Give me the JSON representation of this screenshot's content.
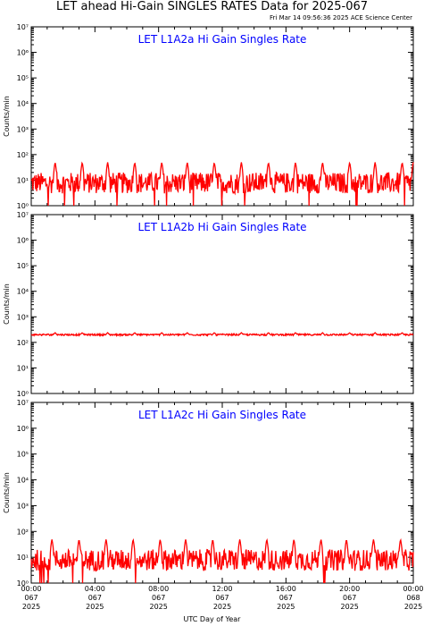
{
  "header": {
    "title": "LET ahead Hi-Gain SINGLES RATES Data for 2025-067",
    "timestamp": "Fri Mar 14 09:56:36 2025 ACE Science Center",
    "x_axis_title": "UTC Day of Year"
  },
  "colors": {
    "series": "#ff0000",
    "panel_title": "#0000ff",
    "axes": "#000000"
  },
  "chart_data": [
    {
      "type": "line",
      "title": "LET L1A2a Hi Gain Singles Rate",
      "ylabel": "Counts/min",
      "y_scale": "log",
      "ylim": [
        1,
        10000000
      ],
      "xlim": [
        0,
        24
      ],
      "x_unit": "hours UTC, day 067 of 2025",
      "y_tick_labels": [
        "10⁰",
        "10¹",
        "10²",
        "10³",
        "10⁴",
        "10⁵",
        "10⁶",
        "10⁷"
      ],
      "y_tick_values": [
        1,
        10,
        100,
        1000,
        10000,
        100000,
        1000000,
        10000000
      ],
      "x_tick_labels": [],
      "series": [
        {
          "baseline": 8,
          "noise_range": [
            3,
            20
          ],
          "spike_peak": 50,
          "spike_times": [
            1.5,
            3.2,
            4.8,
            6.5,
            8.2,
            9.8,
            11.5,
            13.2,
            14.9,
            16.6,
            18.3,
            20.0,
            21.6,
            23.3,
            24.0
          ]
        }
      ]
    },
    {
      "type": "line",
      "title": "LET L1A2b Hi Gain Singles Rate",
      "ylabel": "Counts/min",
      "y_scale": "log",
      "ylim": [
        1,
        10000000
      ],
      "xlim": [
        0,
        24
      ],
      "x_unit": "hours UTC, day 067 of 2025",
      "y_tick_labels": [
        "10⁰",
        "10¹",
        "10²",
        "10³",
        "10⁴",
        "10⁵",
        "10⁶",
        "10⁷"
      ],
      "y_tick_values": [
        1,
        10,
        100,
        1000,
        10000,
        100000,
        1000000,
        10000000
      ],
      "x_tick_labels": [],
      "series": [
        {
          "baseline": 200,
          "noise_range": [
            185,
            215
          ],
          "spike_peak": 240,
          "spike_times": [
            1.5,
            3.2,
            4.8,
            6.5,
            8.2,
            9.8,
            11.5,
            13.2,
            14.9,
            16.6,
            18.3,
            20.0,
            21.6,
            23.3
          ]
        }
      ]
    },
    {
      "type": "line",
      "title": "LET L1A2c Hi Gain Singles Rate",
      "ylabel": "Counts/min",
      "y_scale": "log",
      "ylim": [
        1,
        10000000
      ],
      "xlim": [
        0,
        24
      ],
      "x_unit": "hours UTC, day 067 of 2025",
      "y_tick_labels": [
        "10⁰",
        "10¹",
        "10²",
        "10³",
        "10⁴",
        "10⁵",
        "10⁶",
        "10⁷"
      ],
      "y_tick_values": [
        1,
        10,
        100,
        1000,
        10000,
        100000,
        1000000,
        10000000
      ],
      "x_tick_labels": [
        {
          "time": "00:00",
          "day": "067",
          "year": "2025"
        },
        {
          "time": "04:00",
          "day": "067",
          "year": "2025"
        },
        {
          "time": "08:00",
          "day": "067",
          "year": "2025"
        },
        {
          "time": "12:00",
          "day": "067",
          "year": "2025"
        },
        {
          "time": "16:00",
          "day": "067",
          "year": "2025"
        },
        {
          "time": "20:00",
          "day": "067",
          "year": "2025"
        },
        {
          "time": "00:00",
          "day": "068",
          "year": "2025"
        }
      ],
      "x_tick_values": [
        0,
        4,
        8,
        12,
        16,
        20,
        24
      ],
      "series": [
        {
          "baseline": 8,
          "noise_range": [
            3,
            20
          ],
          "spike_peak": 50,
          "spike_times": [
            1.3,
            3.0,
            4.7,
            6.4,
            8.1,
            9.7,
            11.4,
            13.1,
            14.8,
            16.5,
            18.2,
            19.8,
            21.5,
            23.2
          ]
        }
      ]
    }
  ]
}
